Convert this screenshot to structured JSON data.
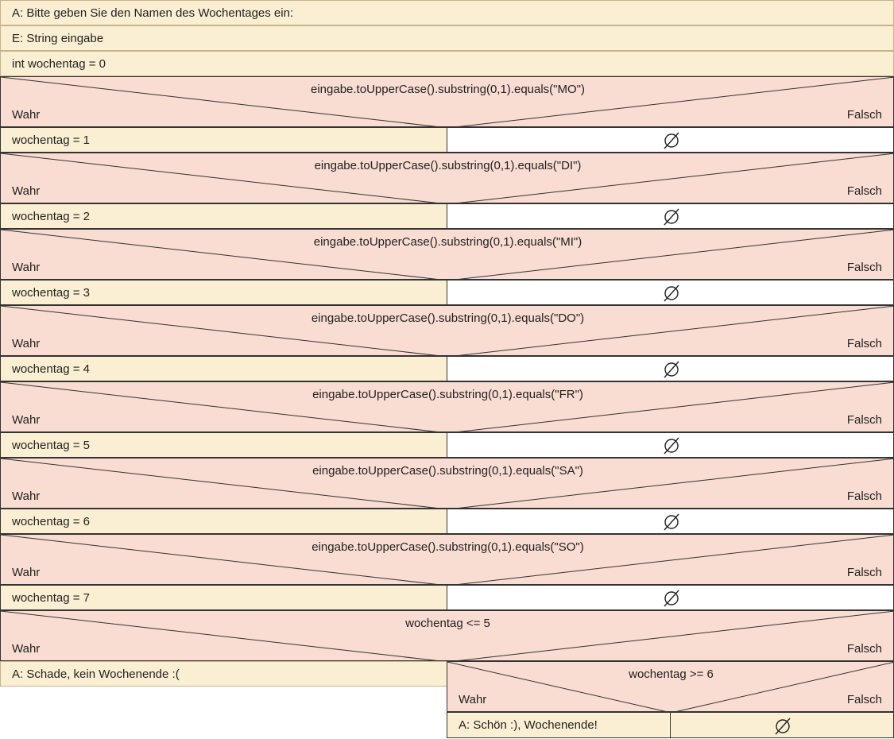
{
  "top_statements": [
    "A: Bitte geben Sie den Namen des Wochentages ein:",
    "E: String eingabe",
    "int wochentag = 0"
  ],
  "branch_true_label": "Wahr",
  "branch_false_label": "Falsch",
  "day_checks": [
    {
      "condition": "eingabe.toUpperCase().substring(0,1).equals(\"MO\")",
      "assignment": "wochentag = 1"
    },
    {
      "condition": "eingabe.toUpperCase().substring(0,1).equals(\"DI\")",
      "assignment": "wochentag = 2"
    },
    {
      "condition": "eingabe.toUpperCase().substring(0,1).equals(\"MI\")",
      "assignment": "wochentag = 3"
    },
    {
      "condition": "eingabe.toUpperCase().substring(0,1).equals(\"DO\")",
      "assignment": "wochentag = 4"
    },
    {
      "condition": "eingabe.toUpperCase().substring(0,1).equals(\"FR\")",
      "assignment": "wochentag = 5"
    },
    {
      "condition": "eingabe.toUpperCase().substring(0,1).equals(\"SA\")",
      "assignment": "wochentag = 6"
    },
    {
      "condition": "eingabe.toUpperCase().substring(0,1).equals(\"SO\")",
      "assignment": "wochentag = 7"
    }
  ],
  "final_check": {
    "condition": "wochentag <= 5",
    "true_statement": "A: Schade, kein Wochenende :(",
    "nested_condition": "wochentag >= 6",
    "nested_true_statement": "A: Schön :), Wochenende!"
  },
  "colors": {
    "statement_fill": "#fbefd3",
    "condition_fill": "#f9dcd2",
    "empty_fill": "#ffffff",
    "line": "#333333"
  },
  "icons": {
    "empty_branch": "empty-set-icon"
  }
}
